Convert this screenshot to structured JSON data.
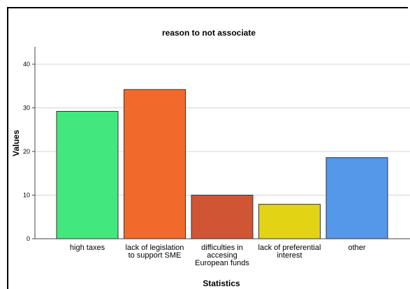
{
  "chart_data": {
    "type": "bar",
    "title": "reason to not associate",
    "xlabel": "Statistics",
    "ylabel": "Values",
    "ylim": [
      0,
      44
    ],
    "yticks": [
      0,
      10,
      20,
      30,
      40
    ],
    "grid": true,
    "categories": [
      "high taxes",
      "lack of legislation to support SME",
      "difficulties in accesing European funds",
      "lack of preferential interest",
      "other"
    ],
    "category_lines": [
      [
        "high taxes"
      ],
      [
        "lack of legislation",
        "to support SME"
      ],
      [
        "difficulties in",
        "accesing",
        "European funds"
      ],
      [
        "lack of preferential",
        "interest"
      ],
      [
        "other"
      ]
    ],
    "values": [
      29.2,
      34.2,
      10.0,
      7.9,
      18.6
    ],
    "colors": [
      "#42e87e",
      "#f2692c",
      "#d05535",
      "#e2d414",
      "#5597e8"
    ]
  }
}
